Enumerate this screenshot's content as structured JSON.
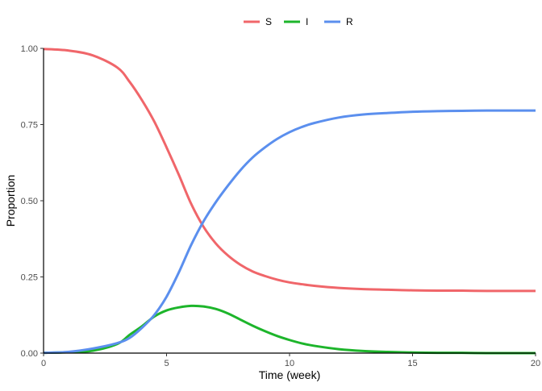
{
  "chart_data": {
    "type": "line",
    "title": "",
    "xlabel": "Time (week)",
    "ylabel": "Proportion",
    "xlim": [
      0,
      20
    ],
    "ylim": [
      0,
      1
    ],
    "x_ticks": [
      "0",
      "5",
      "10",
      "15",
      "20"
    ],
    "y_ticks": [
      "0.00",
      "0.25",
      "0.50",
      "0.75",
      "1.00"
    ],
    "grid": false,
    "legend_position": "top",
    "x": [
      0,
      1,
      2,
      3,
      3.5,
      4,
      4.5,
      5,
      5.5,
      6,
      6.5,
      7,
      7.5,
      8,
      8.5,
      9,
      9.5,
      10,
      10.5,
      11,
      12,
      13,
      14,
      15,
      16,
      17,
      18,
      19,
      20
    ],
    "series": [
      {
        "name": "S",
        "color": "#F0666A",
        "values": [
          0.998,
          0.993,
          0.977,
          0.937,
          0.89,
          0.83,
          0.76,
          0.675,
          0.585,
          0.49,
          0.415,
          0.36,
          0.32,
          0.29,
          0.268,
          0.253,
          0.241,
          0.232,
          0.226,
          0.221,
          0.214,
          0.21,
          0.208,
          0.206,
          0.205,
          0.205,
          0.204,
          0.204,
          0.204
        ]
      },
      {
        "name": "I",
        "color": "#1DB52B",
        "values": [
          0.001,
          0.003,
          0.008,
          0.03,
          0.06,
          0.088,
          0.12,
          0.14,
          0.15,
          0.155,
          0.153,
          0.145,
          0.13,
          0.11,
          0.09,
          0.072,
          0.056,
          0.043,
          0.032,
          0.024,
          0.013,
          0.007,
          0.004,
          0.002,
          0.001,
          0.001,
          0.0,
          0.0,
          0.0
        ]
      },
      {
        "name": "R",
        "color": "#5B8FEE",
        "values": [
          0.001,
          0.004,
          0.015,
          0.033,
          0.05,
          0.083,
          0.125,
          0.185,
          0.265,
          0.355,
          0.432,
          0.495,
          0.55,
          0.6,
          0.642,
          0.675,
          0.703,
          0.725,
          0.742,
          0.755,
          0.773,
          0.783,
          0.788,
          0.792,
          0.794,
          0.795,
          0.796,
          0.796,
          0.796
        ]
      }
    ]
  }
}
